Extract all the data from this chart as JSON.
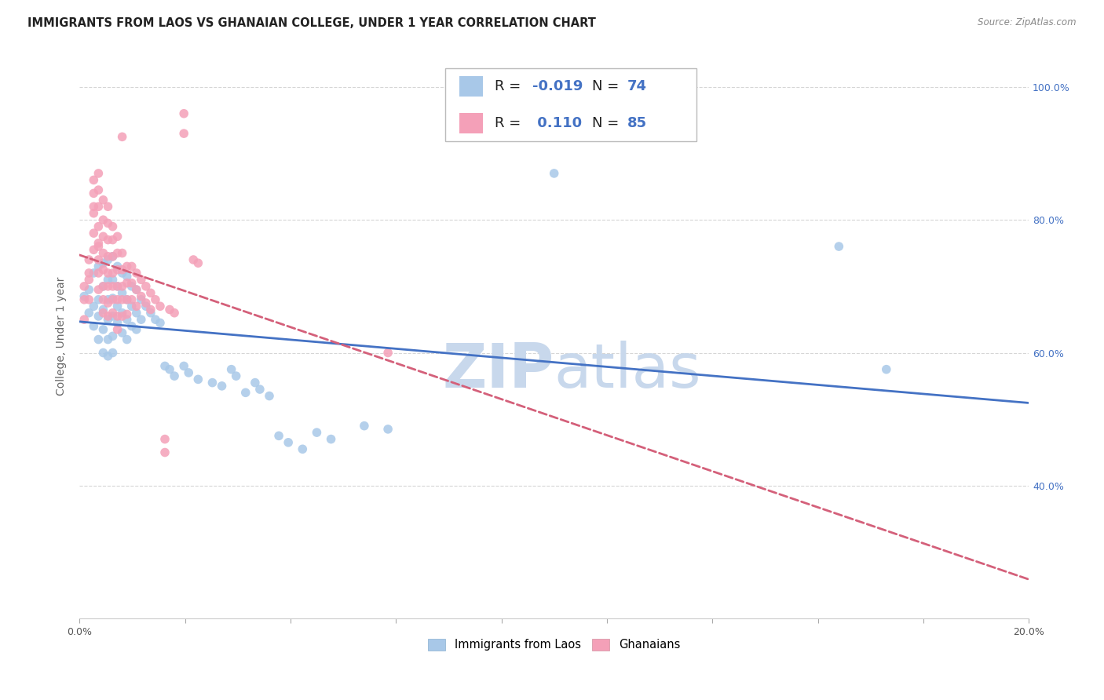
{
  "title": "IMMIGRANTS FROM LAOS VS GHANAIAN COLLEGE, UNDER 1 YEAR CORRELATION CHART",
  "source": "Source: ZipAtlas.com",
  "ylabel": "College, Under 1 year",
  "xlim": [
    0.0,
    0.2
  ],
  "ylim": [
    0.2,
    1.05
  ],
  "xticks": [
    0.0,
    0.02222,
    0.04444,
    0.06667,
    0.08889,
    0.11111,
    0.13333,
    0.15556,
    0.17778,
    0.2
  ],
  "yticks": [
    0.4,
    0.6,
    0.8,
    1.0
  ],
  "ytick_labels": [
    "40.0%",
    "60.0%",
    "80.0%",
    "100.0%"
  ],
  "legend_x_labels": [
    "Immigrants from Laos",
    "Ghanaians"
  ],
  "blue_color": "#a8c8e8",
  "pink_color": "#f4a0b8",
  "blue_line_color": "#4472c4",
  "pink_line_color": "#d4607a",
  "blue_scatter": [
    [
      0.001,
      0.685
    ],
    [
      0.002,
      0.695
    ],
    [
      0.002,
      0.66
    ],
    [
      0.003,
      0.72
    ],
    [
      0.003,
      0.67
    ],
    [
      0.003,
      0.64
    ],
    [
      0.004,
      0.73
    ],
    [
      0.004,
      0.68
    ],
    [
      0.004,
      0.655
    ],
    [
      0.004,
      0.62
    ],
    [
      0.005,
      0.735
    ],
    [
      0.005,
      0.7
    ],
    [
      0.005,
      0.665
    ],
    [
      0.005,
      0.635
    ],
    [
      0.005,
      0.6
    ],
    [
      0.006,
      0.74
    ],
    [
      0.006,
      0.71
    ],
    [
      0.006,
      0.68
    ],
    [
      0.006,
      0.65
    ],
    [
      0.006,
      0.62
    ],
    [
      0.006,
      0.595
    ],
    [
      0.007,
      0.745
    ],
    [
      0.007,
      0.71
    ],
    [
      0.007,
      0.682
    ],
    [
      0.007,
      0.655
    ],
    [
      0.007,
      0.625
    ],
    [
      0.007,
      0.6
    ],
    [
      0.008,
      0.73
    ],
    [
      0.008,
      0.7
    ],
    [
      0.008,
      0.67
    ],
    [
      0.008,
      0.645
    ],
    [
      0.009,
      0.72
    ],
    [
      0.009,
      0.69
    ],
    [
      0.009,
      0.66
    ],
    [
      0.009,
      0.63
    ],
    [
      0.01,
      0.715
    ],
    [
      0.01,
      0.68
    ],
    [
      0.01,
      0.65
    ],
    [
      0.01,
      0.62
    ],
    [
      0.011,
      0.7
    ],
    [
      0.011,
      0.67
    ],
    [
      0.011,
      0.64
    ],
    [
      0.012,
      0.695
    ],
    [
      0.012,
      0.66
    ],
    [
      0.012,
      0.635
    ],
    [
      0.013,
      0.68
    ],
    [
      0.013,
      0.65
    ],
    [
      0.014,
      0.67
    ],
    [
      0.015,
      0.66
    ],
    [
      0.016,
      0.65
    ],
    [
      0.017,
      0.645
    ],
    [
      0.018,
      0.58
    ],
    [
      0.019,
      0.575
    ],
    [
      0.02,
      0.565
    ],
    [
      0.022,
      0.58
    ],
    [
      0.023,
      0.57
    ],
    [
      0.025,
      0.56
    ],
    [
      0.028,
      0.555
    ],
    [
      0.03,
      0.55
    ],
    [
      0.032,
      0.575
    ],
    [
      0.033,
      0.565
    ],
    [
      0.035,
      0.54
    ],
    [
      0.037,
      0.555
    ],
    [
      0.038,
      0.545
    ],
    [
      0.04,
      0.535
    ],
    [
      0.042,
      0.475
    ],
    [
      0.044,
      0.465
    ],
    [
      0.047,
      0.455
    ],
    [
      0.05,
      0.48
    ],
    [
      0.053,
      0.47
    ],
    [
      0.06,
      0.49
    ],
    [
      0.065,
      0.485
    ],
    [
      0.1,
      0.87
    ],
    [
      0.16,
      0.76
    ],
    [
      0.17,
      0.575
    ]
  ],
  "pink_scatter": [
    [
      0.001,
      0.68
    ],
    [
      0.001,
      0.65
    ],
    [
      0.001,
      0.7
    ],
    [
      0.002,
      0.74
    ],
    [
      0.002,
      0.71
    ],
    [
      0.002,
      0.68
    ],
    [
      0.002,
      0.72
    ],
    [
      0.003,
      0.81
    ],
    [
      0.003,
      0.78
    ],
    [
      0.003,
      0.755
    ],
    [
      0.003,
      0.86
    ],
    [
      0.003,
      0.84
    ],
    [
      0.003,
      0.82
    ],
    [
      0.004,
      0.87
    ],
    [
      0.004,
      0.845
    ],
    [
      0.004,
      0.82
    ],
    [
      0.004,
      0.79
    ],
    [
      0.004,
      0.765
    ],
    [
      0.004,
      0.74
    ],
    [
      0.004,
      0.72
    ],
    [
      0.004,
      0.695
    ],
    [
      0.004,
      0.76
    ],
    [
      0.005,
      0.83
    ],
    [
      0.005,
      0.8
    ],
    [
      0.005,
      0.775
    ],
    [
      0.005,
      0.75
    ],
    [
      0.005,
      0.725
    ],
    [
      0.005,
      0.7
    ],
    [
      0.005,
      0.68
    ],
    [
      0.005,
      0.66
    ],
    [
      0.006,
      0.82
    ],
    [
      0.006,
      0.795
    ],
    [
      0.006,
      0.77
    ],
    [
      0.006,
      0.745
    ],
    [
      0.006,
      0.72
    ],
    [
      0.006,
      0.7
    ],
    [
      0.006,
      0.675
    ],
    [
      0.006,
      0.655
    ],
    [
      0.007,
      0.79
    ],
    [
      0.007,
      0.77
    ],
    [
      0.007,
      0.745
    ],
    [
      0.007,
      0.72
    ],
    [
      0.007,
      0.7
    ],
    [
      0.007,
      0.68
    ],
    [
      0.007,
      0.66
    ],
    [
      0.008,
      0.775
    ],
    [
      0.008,
      0.75
    ],
    [
      0.008,
      0.725
    ],
    [
      0.008,
      0.7
    ],
    [
      0.008,
      0.68
    ],
    [
      0.008,
      0.655
    ],
    [
      0.008,
      0.635
    ],
    [
      0.009,
      0.75
    ],
    [
      0.009,
      0.725
    ],
    [
      0.009,
      0.7
    ],
    [
      0.009,
      0.68
    ],
    [
      0.009,
      0.655
    ],
    [
      0.009,
      0.925
    ],
    [
      0.01,
      0.73
    ],
    [
      0.01,
      0.705
    ],
    [
      0.01,
      0.68
    ],
    [
      0.01,
      0.658
    ],
    [
      0.011,
      0.73
    ],
    [
      0.011,
      0.705
    ],
    [
      0.011,
      0.68
    ],
    [
      0.012,
      0.72
    ],
    [
      0.012,
      0.695
    ],
    [
      0.012,
      0.67
    ],
    [
      0.013,
      0.71
    ],
    [
      0.013,
      0.685
    ],
    [
      0.014,
      0.7
    ],
    [
      0.014,
      0.675
    ],
    [
      0.015,
      0.69
    ],
    [
      0.015,
      0.665
    ],
    [
      0.016,
      0.68
    ],
    [
      0.017,
      0.67
    ],
    [
      0.018,
      0.47
    ],
    [
      0.018,
      0.45
    ],
    [
      0.019,
      0.665
    ],
    [
      0.02,
      0.66
    ],
    [
      0.022,
      0.96
    ],
    [
      0.022,
      0.93
    ],
    [
      0.024,
      0.74
    ],
    [
      0.025,
      0.735
    ],
    [
      0.065,
      0.6
    ]
  ],
  "background_color": "#ffffff",
  "grid_color": "#cccccc",
  "title_fontsize": 10.5,
  "axis_label_fontsize": 10,
  "tick_fontsize": 9,
  "watermark_zip": "ZIP",
  "watermark_atlas": "atlas",
  "watermark_color": "#c8d8ec"
}
